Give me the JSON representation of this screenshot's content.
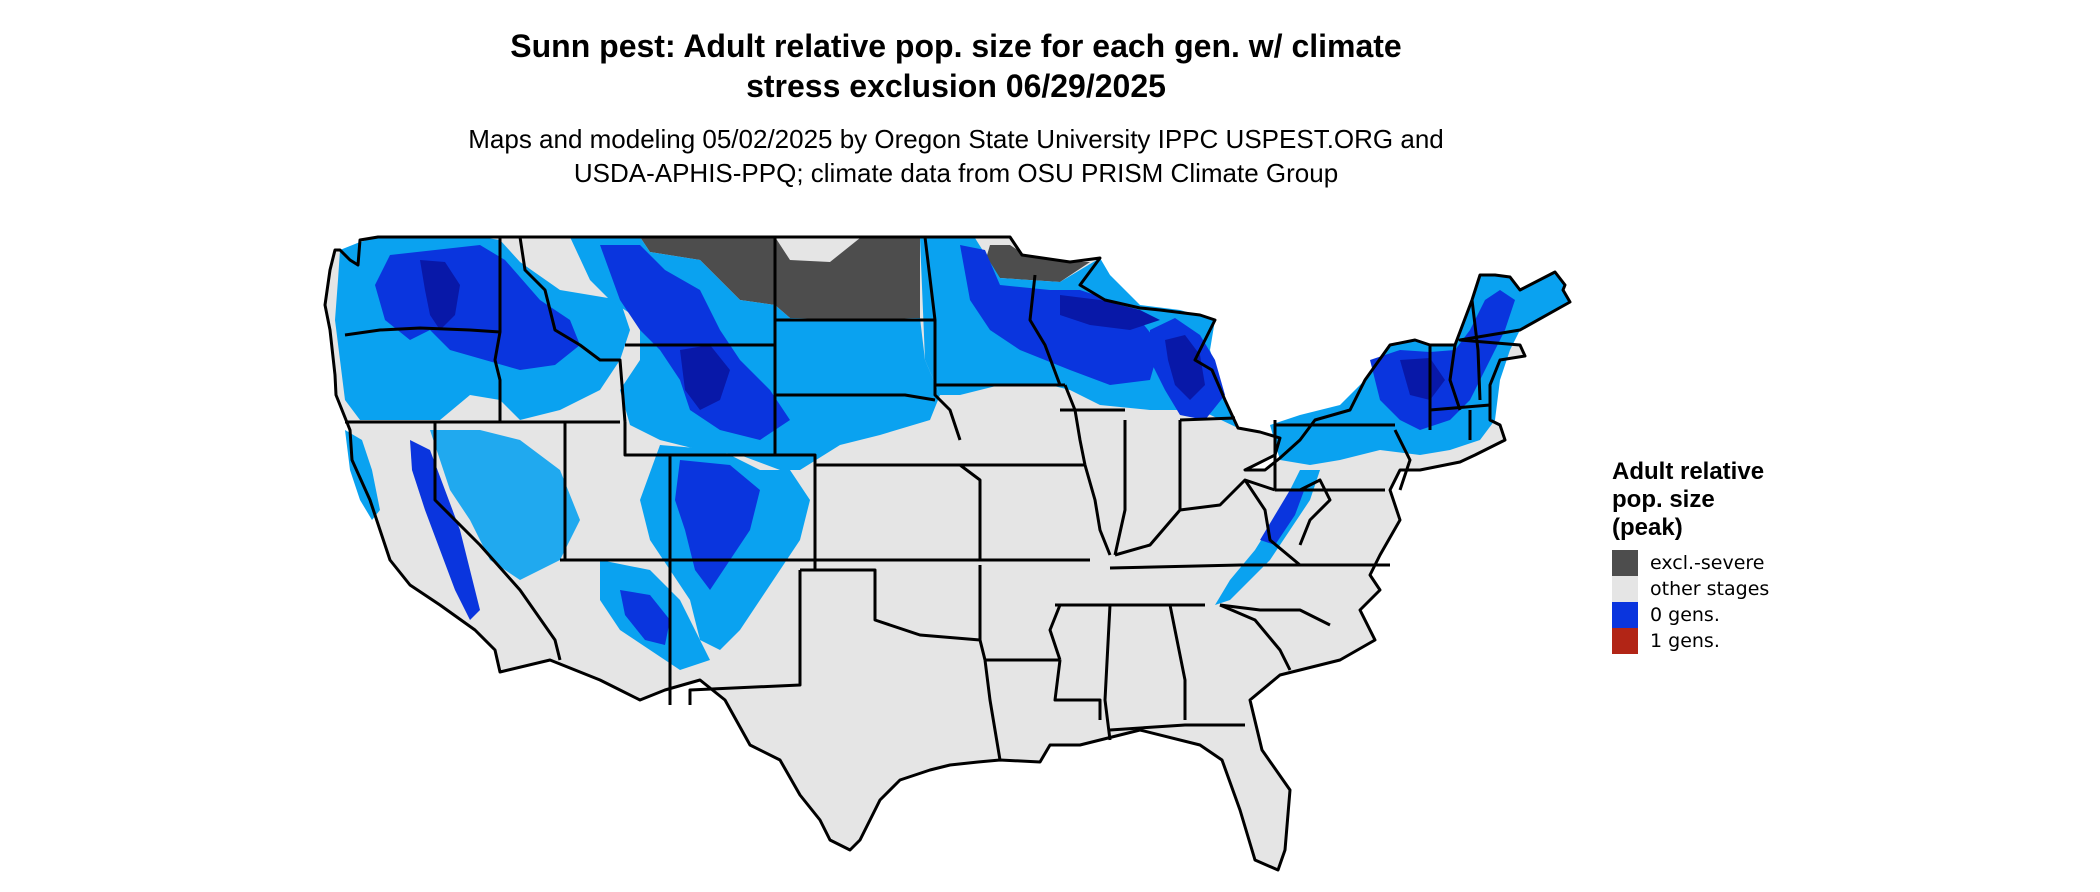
{
  "map": {
    "title_lines": [
      "Sunn pest: Adult relative pop. size for each gen. w/ climate",
      "stress exclusion 06/29/2025"
    ],
    "subtitle_lines": [
      "Maps and modeling 05/02/2025 by Oregon State University IPPC USPEST.ORG and",
      "USDA-APHIS-PPQ; climate data from OSU PRISM Climate Group"
    ]
  },
  "legend": {
    "title_lines": [
      "Adult relative",
      "pop. size",
      "(peak)"
    ],
    "items": [
      {
        "label": "excl.-severe",
        "color": "#4d4d4d"
      },
      {
        "label": "other stages",
        "color": "#e5e5e5"
      },
      {
        "label": "0 gens.",
        "color": "#0a35de"
      },
      {
        "label": "1 gens.",
        "color": "#b22516"
      }
    ]
  },
  "colors": {
    "land": "#e5e5e5",
    "excluded": "#4d4d4d",
    "light_blue": "#0aa2f0",
    "mid_blue": "#0a35de",
    "dark_blue": "#0818a8",
    "boundary": "#000000"
  }
}
